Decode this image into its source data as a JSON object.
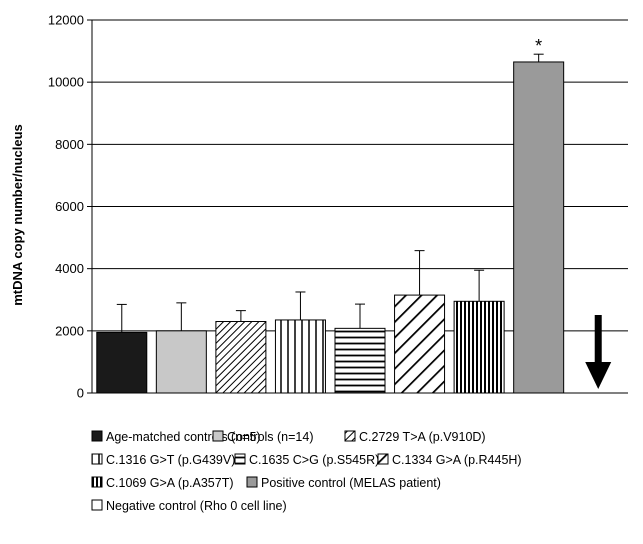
{
  "chart_data": {
    "type": "bar",
    "ylabel": "mtDNA copy number/nucleus",
    "xlabel": "",
    "ylim": [
      0,
      12000
    ],
    "yticks": [
      0,
      2000,
      4000,
      6000,
      8000,
      10000,
      12000
    ],
    "grid": true,
    "legend_placement": "bottom",
    "annotations": [
      {
        "text": "*",
        "series_index": 7
      }
    ],
    "series": [
      {
        "name": "Age-matched controls (n=5)",
        "value": 1950,
        "error": 900,
        "pattern": "solid-black"
      },
      {
        "name": "Controls (n=14)",
        "value": 2000,
        "error": 900,
        "pattern": "solid-lightgray"
      },
      {
        "name": "C.2729 T>A (p.V910D)",
        "value": 2300,
        "error": 350,
        "pattern": "diagonal-hatch"
      },
      {
        "name": "C.1316 G>T (p.G439V)",
        "value": 2350,
        "error": 900,
        "pattern": "vertical-lines"
      },
      {
        "name": "C.1635 C>G (p.S545R)",
        "value": 2080,
        "error": 780,
        "pattern": "horizontal-lines"
      },
      {
        "name": "C.1334 G>A (p.R445H)",
        "value": 3150,
        "error": 1430,
        "pattern": "wide-diagonal"
      },
      {
        "name": "C.1069 G>A (p.A357T)",
        "value": 2950,
        "error": 1000,
        "pattern": "dense-vertical"
      },
      {
        "name": "Positive control (MELAS patient)",
        "value": 10650,
        "error": 250,
        "pattern": "solid-gray"
      },
      {
        "name": "Negative control (Rho 0 cell line)",
        "value": 0,
        "error": 0,
        "pattern": "white"
      }
    ],
    "colors": {
      "axis": "#000000",
      "grid": "#000000",
      "black": "#1a1a1a",
      "lightgray": "#c8c8c8",
      "gray": "#9a9a9a",
      "arrow": "#000000"
    }
  }
}
